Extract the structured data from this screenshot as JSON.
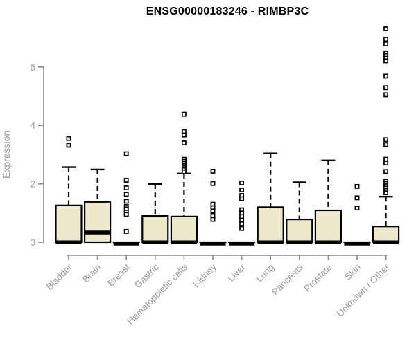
{
  "chart_data": {
    "type": "boxplot",
    "title": "ENSG00000183246 - RIMBP3C",
    "xlabel": "",
    "ylabel": "Expression",
    "ylim": [
      0,
      7.4
    ],
    "yticks": [
      0,
      2,
      4,
      6
    ],
    "grid": false,
    "legend": null,
    "categories": [
      "Bladder",
      "Brain",
      "Breast",
      "Gastric",
      "Hematopoietic cells",
      "Kidney",
      "Liver",
      "Lung",
      "Pancreas",
      "Prostate",
      "Skin",
      "Unknown / Other"
    ],
    "boxes": [
      {
        "category": "Bladder",
        "q1": 0,
        "median": 0.04,
        "q3": 1.26,
        "whisker_low": 0,
        "whisker_high": 2.57,
        "outliers": [
          3.55,
          3.32
        ]
      },
      {
        "category": "Brain",
        "q1": 0,
        "median": 0.38,
        "q3": 1.38,
        "whisker_low": 0,
        "whisker_high": 2.49,
        "outliers": []
      },
      {
        "category": "Breast",
        "q1": 0,
        "median": 0.0,
        "q3": 0,
        "whisker_low": 0,
        "whisker_high": 0,
        "outliers": [
          3.03,
          2.12,
          1.86,
          1.64,
          1.4,
          1.22,
          1.14,
          1.03,
          0.95,
          0.37
        ]
      },
      {
        "category": "Gastric",
        "q1": 0,
        "median": 0.04,
        "q3": 0.9,
        "whisker_low": 0,
        "whisker_high": 1.99,
        "outliers": []
      },
      {
        "category": "Hematopoietic cells",
        "q1": 0,
        "median": 0.04,
        "q3": 0.88,
        "whisker_low": 0,
        "whisker_high": 2.35,
        "outliers": [
          4.38,
          3.79,
          3.67,
          3.4,
          2.84,
          2.77,
          2.7,
          2.62,
          2.55,
          2.48,
          2.41
        ]
      },
      {
        "category": "Kidney",
        "q1": 0,
        "median": 0.0,
        "q3": 0,
        "whisker_low": 0,
        "whisker_high": 0,
        "outliers": [
          2.43,
          2.01,
          1.3,
          1.18,
          1.07,
          0.92,
          0.78
        ]
      },
      {
        "category": "Liver",
        "q1": 0,
        "median": 0.0,
        "q3": 0,
        "whisker_low": 0,
        "whisker_high": 0,
        "outliers": [
          2.03,
          1.79,
          1.6,
          1.49,
          1.11,
          1.0,
          0.88,
          0.76,
          0.63,
          0.47
        ]
      },
      {
        "category": "Lung",
        "q1": 0,
        "median": 0.04,
        "q3": 1.2,
        "whisker_low": 0,
        "whisker_high": 3.04,
        "outliers": []
      },
      {
        "category": "Pancreas",
        "q1": 0,
        "median": 0.04,
        "q3": 0.78,
        "whisker_low": 0,
        "whisker_high": 2.05,
        "outliers": []
      },
      {
        "category": "Prostate",
        "q1": 0,
        "median": 0.04,
        "q3": 1.09,
        "whisker_low": 0,
        "whisker_high": 2.8,
        "outliers": []
      },
      {
        "category": "Skin",
        "q1": 0,
        "median": 0.0,
        "q3": 0,
        "whisker_low": 0,
        "whisker_high": 0,
        "outliers": [
          1.91,
          1.52,
          1.17
        ]
      },
      {
        "category": "Unknown / Other",
        "q1": 0,
        "median": 0.04,
        "q3": 0.54,
        "whisker_low": 0,
        "whisker_high": 1.56,
        "outliers": [
          7.31,
          6.95,
          6.79,
          6.48,
          6.39,
          6.3,
          6.21,
          5.69,
          5.29,
          5.05,
          3.51,
          3.34,
          2.84,
          2.71,
          2.42,
          2.09,
          2.01,
          1.93,
          1.85,
          1.77,
          1.69
        ]
      }
    ],
    "colors": {
      "box_fill": "#EEE8CD",
      "box_border": "#000000",
      "median": "#000000",
      "whisker": "#000000",
      "outlier_stroke": "#000000",
      "outlier_fill": "#ffffff",
      "axis": "#878787",
      "tick_label": "#999999",
      "title": "#000000",
      "background": "#ffffff"
    }
  }
}
